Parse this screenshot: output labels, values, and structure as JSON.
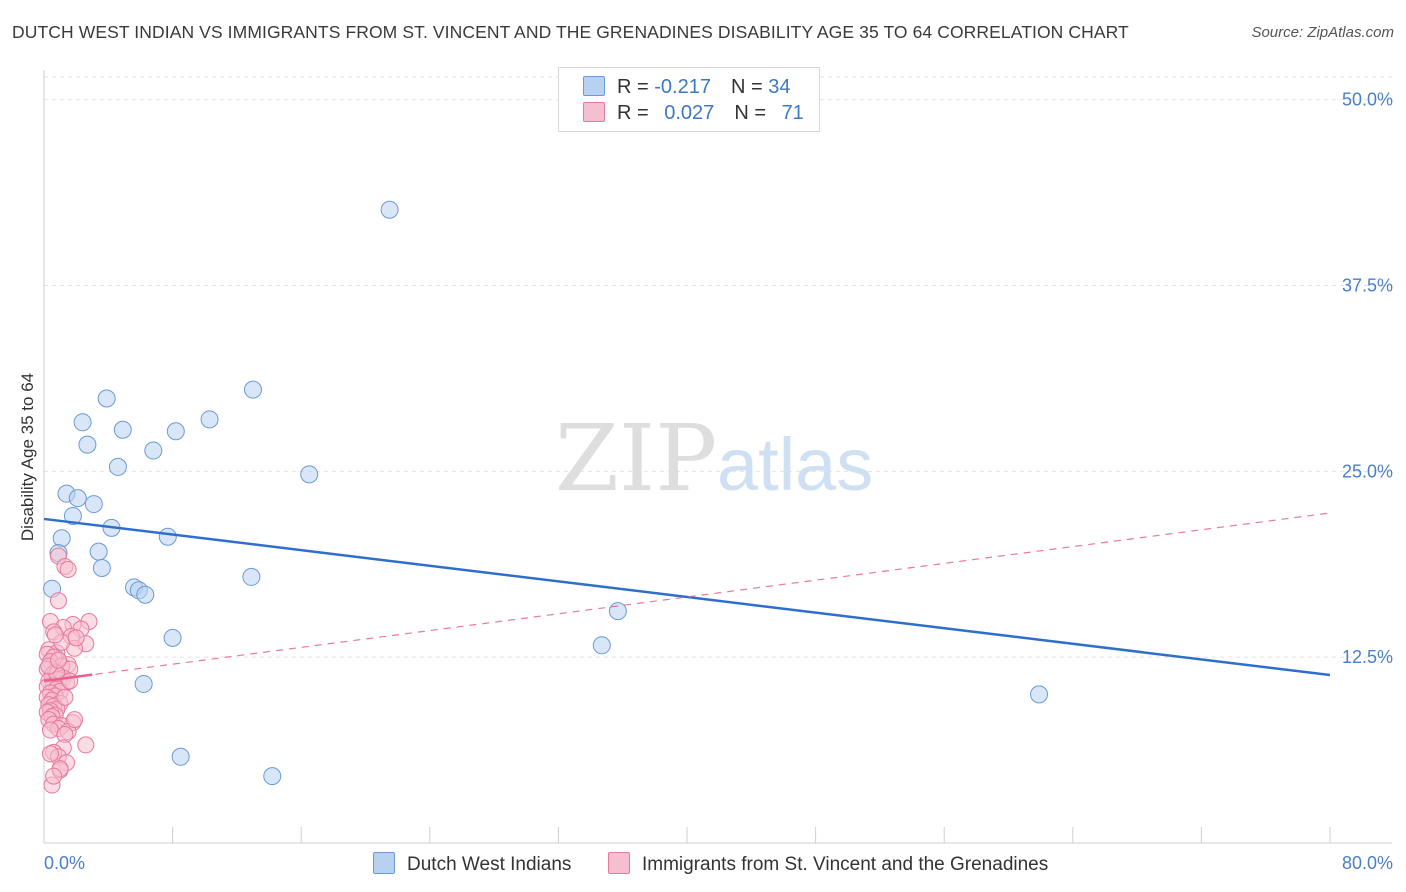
{
  "title": "DUTCH WEST INDIAN VS IMMIGRANTS FROM ST. VINCENT AND THE GRENADINES DISABILITY AGE 35 TO 64 CORRELATION CHART",
  "source": "Source: ZipAtlas.com",
  "watermark": {
    "part1": "ZIP",
    "part2": "atlas"
  },
  "colors": {
    "blue_fill": "#b8d1f0",
    "blue_stroke": "#6a9ad8",
    "blue_line": "#2e6fcc",
    "pink_fill": "#f6bfd0",
    "pink_stroke": "#e8789c",
    "pink_line": "#e8608e",
    "tick_text": "#4a7fc8",
    "grid": "#e2e2e2"
  },
  "legend": {
    "rows": [
      {
        "r_label": "R = ",
        "r_value": "-0.217",
        "n_label": "N = ",
        "n_value": "34"
      },
      {
        "r_label": "R = ",
        "r_value": "0.027",
        "n_label": "N = ",
        "n_value": "71"
      }
    ]
  },
  "bottom_legend": [
    "Dutch West Indians",
    "Immigrants from St. Vincent and the Grenadines"
  ],
  "chart_data": {
    "type": "scatter",
    "title": "DUTCH WEST INDIAN VS IMMIGRANTS FROM ST. VINCENT AND THE GRENADINES DISABILITY AGE 35 TO 64 CORRELATION CHART",
    "xlabel": "",
    "ylabel": "Disability Age 35 to 64",
    "xlim": [
      0,
      80
    ],
    "ylim": [
      0,
      52
    ],
    "x_tick_labels": [
      "0.0%",
      "80.0%"
    ],
    "y_ticks": [
      12.5,
      25.0,
      37.5,
      50.0
    ],
    "y_tick_labels": [
      "12.5%",
      "25.0%",
      "37.5%",
      "50.0%"
    ],
    "grid": true,
    "series": [
      {
        "name": "Dutch West Indians",
        "color": "blue",
        "trend": {
          "x": [
            0,
            80
          ],
          "y": [
            21.8,
            11.3
          ],
          "style": "solid"
        },
        "points": [
          [
            21.5,
            42.6
          ],
          [
            3.9,
            29.9
          ],
          [
            13.0,
            30.5
          ],
          [
            2.4,
            28.3
          ],
          [
            4.9,
            27.8
          ],
          [
            8.2,
            27.7
          ],
          [
            10.3,
            28.5
          ],
          [
            2.7,
            26.8
          ],
          [
            6.8,
            26.4
          ],
          [
            4.6,
            25.3
          ],
          [
            16.5,
            24.8
          ],
          [
            1.4,
            23.5
          ],
          [
            2.1,
            23.2
          ],
          [
            3.1,
            22.8
          ],
          [
            1.8,
            22.0
          ],
          [
            4.2,
            21.2
          ],
          [
            1.1,
            20.5
          ],
          [
            7.7,
            20.6
          ],
          [
            3.4,
            19.6
          ],
          [
            0.9,
            19.5
          ],
          [
            3.6,
            18.5
          ],
          [
            12.9,
            17.9
          ],
          [
            5.6,
            17.2
          ],
          [
            5.9,
            17.0
          ],
          [
            6.3,
            16.7
          ],
          [
            0.5,
            17.1
          ],
          [
            35.7,
            15.6
          ],
          [
            8.0,
            13.8
          ],
          [
            34.7,
            13.3
          ],
          [
            0.7,
            12.5
          ],
          [
            6.2,
            10.7
          ],
          [
            61.9,
            10.0
          ],
          [
            8.5,
            5.8
          ],
          [
            14.2,
            4.5
          ]
        ]
      },
      {
        "name": "Immigrants from St. Vincent and the Grenadines",
        "color": "pink",
        "trend": {
          "x": [
            0,
            80
          ],
          "y": [
            10.9,
            22.2
          ],
          "style": "dashed",
          "solid_until_x": 3.0
        },
        "points": [
          [
            0.9,
            19.3
          ],
          [
            1.3,
            18.6
          ],
          [
            1.5,
            18.4
          ],
          [
            0.9,
            16.3
          ],
          [
            0.4,
            14.9
          ],
          [
            2.8,
            14.9
          ],
          [
            1.8,
            14.7
          ],
          [
            1.2,
            14.5
          ],
          [
            2.3,
            14.4
          ],
          [
            0.6,
            14.2
          ],
          [
            1.7,
            13.9
          ],
          [
            2.6,
            13.4
          ],
          [
            1.9,
            13.1
          ],
          [
            0.3,
            13.0
          ],
          [
            0.8,
            12.8
          ],
          [
            0.2,
            12.7
          ],
          [
            0.6,
            12.5
          ],
          [
            0.4,
            12.2
          ],
          [
            1.5,
            12.0
          ],
          [
            1.1,
            11.9
          ],
          [
            1.6,
            11.7
          ],
          [
            0.2,
            11.7
          ],
          [
            0.7,
            11.5
          ],
          [
            0.5,
            11.3
          ],
          [
            1.2,
            11.1
          ],
          [
            0.9,
            11.0
          ],
          [
            0.3,
            10.9
          ],
          [
            1.4,
            10.8
          ],
          [
            0.6,
            10.6
          ],
          [
            0.2,
            10.5
          ],
          [
            0.8,
            10.4
          ],
          [
            1.0,
            10.2
          ],
          [
            0.4,
            10.1
          ],
          [
            0.7,
            9.9
          ],
          [
            0.2,
            9.8
          ],
          [
            0.5,
            9.6
          ],
          [
            1.0,
            9.4
          ],
          [
            0.3,
            9.3
          ],
          [
            0.6,
            9.2
          ],
          [
            0.8,
            9.0
          ],
          [
            0.4,
            8.9
          ],
          [
            0.2,
            8.8
          ],
          [
            0.7,
            8.6
          ],
          [
            0.5,
            8.5
          ],
          [
            0.3,
            8.3
          ],
          [
            1.8,
            8.1
          ],
          [
            0.6,
            8.0
          ],
          [
            1.1,
            7.9
          ],
          [
            0.9,
            7.7
          ],
          [
            0.4,
            7.6
          ],
          [
            1.5,
            7.5
          ],
          [
            1.3,
            7.3
          ],
          [
            2.6,
            6.6
          ],
          [
            1.2,
            6.4
          ],
          [
            0.6,
            6.1
          ],
          [
            0.9,
            5.8
          ],
          [
            1.4,
            5.4
          ],
          [
            1.0,
            4.9
          ],
          [
            0.5,
            3.9
          ],
          [
            0.8,
            11.4
          ],
          [
            1.6,
            10.9
          ],
          [
            1.3,
            9.8
          ],
          [
            0.3,
            11.9
          ],
          [
            0.9,
            12.3
          ],
          [
            1.1,
            13.5
          ],
          [
            2.0,
            13.8
          ],
          [
            0.7,
            14.0
          ],
          [
            1.9,
            8.3
          ],
          [
            0.4,
            6.0
          ],
          [
            1.0,
            5.0
          ],
          [
            0.6,
            4.5
          ]
        ]
      }
    ]
  }
}
